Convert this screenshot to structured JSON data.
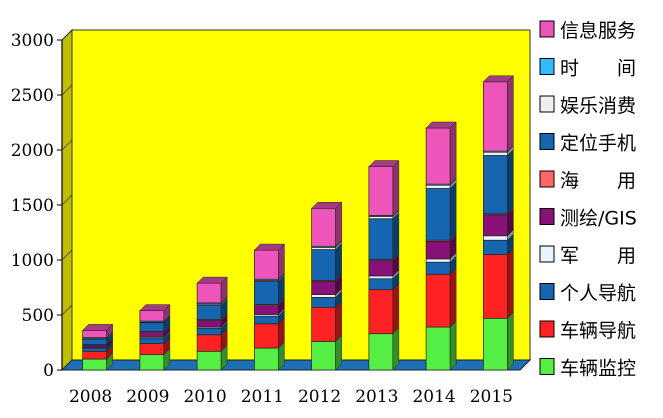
{
  "chart_data": {
    "type": "bar",
    "stacked": true,
    "three_d": true,
    "plot_background": "#ffff00",
    "floor_color": "#1f6fb5",
    "categories": [
      "2008",
      "2009",
      "2010",
      "2011",
      "2012",
      "2013",
      "2014",
      "2015"
    ],
    "ylim": [
      0,
      3000
    ],
    "yticks": [
      "0",
      "500",
      "1000",
      "1500",
      "2000",
      "2500",
      "3000"
    ],
    "ytick_values": [
      0,
      500,
      1000,
      1500,
      2000,
      2500,
      3000
    ],
    "grid": false,
    "legend_position": "right",
    "series": [
      {
        "name": "车辆监控",
        "color": "#55ee44",
        "values": [
          100,
          140,
          170,
          200,
          260,
          330,
          390,
          470
        ]
      },
      {
        "name": "车辆导航",
        "color": "#ff2222",
        "values": [
          70,
          100,
          150,
          220,
          310,
          400,
          480,
          580
        ]
      },
      {
        "name": "个人导航",
        "color": "#1565b0",
        "values": [
          30,
          50,
          60,
          70,
          90,
          100,
          110,
          130
        ]
      },
      {
        "name": "军　　用",
        "color": "#e8f4ff",
        "values": [
          5,
          10,
          10,
          15,
          25,
          25,
          30,
          40
        ]
      },
      {
        "name": "测绘/GIS",
        "color": "#881177",
        "values": [
          20,
          40,
          60,
          80,
          120,
          140,
          160,
          190
        ]
      },
      {
        "name": "海　　用",
        "color": "#ff6666",
        "values": [
          5,
          10,
          10,
          10,
          10,
          10,
          10,
          10
        ]
      },
      {
        "name": "定位手机",
        "color": "#1565b0",
        "values": [
          50,
          80,
          130,
          210,
          280,
          370,
          470,
          530
        ]
      },
      {
        "name": "娱乐消费",
        "color": "#eeeeee",
        "values": [
          5,
          5,
          10,
          10,
          20,
          20,
          30,
          30
        ]
      },
      {
        "name": "时　　间",
        "color": "#33bbff",
        "values": [
          10,
          10,
          10,
          10,
          10,
          10,
          10,
          10
        ]
      },
      {
        "name": "信息服务",
        "color": "#ee55bb",
        "values": [
          65,
          95,
          180,
          265,
          345,
          445,
          510,
          630
        ]
      }
    ]
  }
}
